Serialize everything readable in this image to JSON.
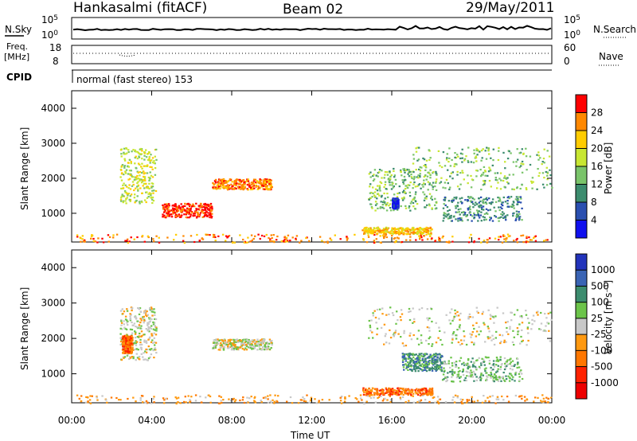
{
  "header": {
    "station": "Hankasalmi (fitACF)",
    "beam": "Beam 02",
    "date": "29/May/2011"
  },
  "top_panels": {
    "nsky_label": "N.Sky",
    "nsky_ticks": [
      "10^5",
      "10^0"
    ],
    "nsearch_label": "N.Search",
    "nsearch_ticks": [
      "10^5",
      "10^0"
    ],
    "freq_label_1": "Freq.",
    "freq_label_2": "[MHz]",
    "freq_ticks": [
      "18",
      "8"
    ],
    "nave_label": "Nave",
    "nave_ticks": [
      "60",
      "0"
    ],
    "cpid_label": "CPID",
    "cpid_text": "normal (fast stereo) 153"
  },
  "chart_data": [
    {
      "type": "heatmap",
      "name": "power",
      "xlabel": "Time UT",
      "ylabel": "Slant Range [km]",
      "xlim": [
        0,
        24
      ],
      "ylim": [
        180,
        4500
      ],
      "x_ticks": [
        "00:00",
        "04:00",
        "08:00",
        "12:00",
        "16:00",
        "20:00",
        "00:00"
      ],
      "y_ticks": [
        1000,
        2000,
        3000,
        4000
      ],
      "colorbar": {
        "label": "Power [dB]",
        "ticks": [
          "28",
          "24",
          "20",
          "16",
          "12",
          "8",
          "4"
        ],
        "colors": [
          "#ff0000",
          "#ff8800",
          "#ffcc00",
          "#c8e632",
          "#7ac46a",
          "#3c8c6e",
          "#2a4fb0",
          "#1010ee"
        ]
      },
      "echo_regions": [
        {
          "t": [
            2.4,
            4.2
          ],
          "r": [
            1300,
            2900
          ],
          "level": 3
        },
        {
          "t": [
            0.2,
            24
          ],
          "r": [
            180,
            420
          ],
          "level": 1
        },
        {
          "t": [
            4.5,
            7.0
          ],
          "r": [
            900,
            1300
          ],
          "level": 0
        },
        {
          "t": [
            7.0,
            10.0
          ],
          "r": [
            1700,
            2000
          ],
          "level": 1
        },
        {
          "t": [
            14.8,
            18.2
          ],
          "r": [
            1100,
            2300
          ],
          "level": 4
        },
        {
          "t": [
            16.0,
            16.3
          ],
          "r": [
            1150,
            1450
          ],
          "level": 7
        },
        {
          "t": [
            17.0,
            24.0
          ],
          "r": [
            1700,
            2900
          ],
          "level": 4
        },
        {
          "t": [
            18.5,
            22.5
          ],
          "r": [
            800,
            1500
          ],
          "level": 5
        },
        {
          "t": [
            14.5,
            18.0
          ],
          "r": [
            420,
            620
          ],
          "level": 2
        }
      ]
    },
    {
      "type": "heatmap",
      "name": "velocity",
      "xlabel": "Time UT",
      "ylabel": "Slant Range [km]",
      "xlim": [
        0,
        24
      ],
      "ylim": [
        180,
        4500
      ],
      "x_ticks": [
        "00:00",
        "04:00",
        "08:00",
        "12:00",
        "16:00",
        "20:00",
        "00:00"
      ],
      "y_ticks": [
        1000,
        2000,
        3000,
        4000
      ],
      "colorbar": {
        "label": "Velocity [m s⁻¹]",
        "ticks": [
          "1000",
          "500",
          "100",
          "25",
          "-25",
          "-100",
          "-500",
          "-1000"
        ],
        "colors": [
          "#2233bb",
          "#3a64b4",
          "#3c8c6e",
          "#6cc44a",
          "#c8c8c8",
          "#ff9910",
          "#ff7700",
          "#ff2200",
          "#ee0000"
        ]
      },
      "echo_regions": [
        {
          "t": [
            2.4,
            4.2
          ],
          "r": [
            1400,
            2900
          ],
          "level": 4
        },
        {
          "t": [
            0.2,
            24
          ],
          "r": [
            180,
            420
          ],
          "level": 5
        },
        {
          "t": [
            7.0,
            10.0
          ],
          "r": [
            1700,
            2000
          ],
          "level": 4
        },
        {
          "t": [
            14.8,
            24.0
          ],
          "r": [
            1800,
            2900
          ],
          "level": 4
        },
        {
          "t": [
            16.5,
            18.5
          ],
          "r": [
            1100,
            1600
          ],
          "level": 2
        },
        {
          "t": [
            18.5,
            22.5
          ],
          "r": [
            800,
            1500
          ],
          "level": 3
        },
        {
          "t": [
            14.5,
            18.0
          ],
          "r": [
            420,
            620
          ],
          "level": 6
        },
        {
          "t": [
            2.5,
            3.0
          ],
          "r": [
            1600,
            2100
          ],
          "level": 6
        }
      ]
    }
  ]
}
